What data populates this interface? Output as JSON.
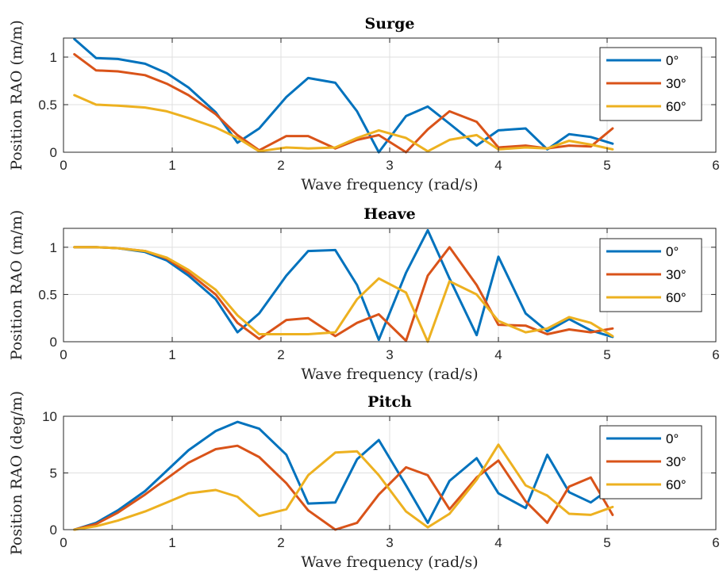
{
  "chart_data": [
    {
      "type": "line",
      "title": "Surge",
      "xlabel": "Wave frequency (rad/s)",
      "ylabel": "Position RAO (m/m)",
      "xlim": [
        0,
        6
      ],
      "ylim": [
        0,
        1.2
      ],
      "xticks": [
        0,
        1,
        2,
        3,
        4,
        5,
        6
      ],
      "yticks": [
        0,
        0.5,
        1
      ],
      "ytick_labels": [
        "0",
        "0.5",
        "1"
      ],
      "grid": true,
      "legend_position": "top-right",
      "x": [
        0.1,
        0.3,
        0.5,
        0.75,
        0.95,
        1.15,
        1.4,
        1.6,
        1.8,
        2.05,
        2.25,
        2.5,
        2.7,
        2.9,
        3.15,
        3.35,
        3.55,
        3.8,
        4.0,
        4.25,
        4.45,
        4.65,
        4.85,
        5.05
      ],
      "series": [
        {
          "name": "0°",
          "color": "#0072BD",
          "values": [
            1.19,
            0.99,
            0.98,
            0.93,
            0.83,
            0.68,
            0.42,
            0.1,
            0.25,
            0.58,
            0.78,
            0.73,
            0.43,
            0.0,
            0.38,
            0.48,
            0.3,
            0.07,
            0.23,
            0.25,
            0.03,
            0.19,
            0.16,
            0.09
          ]
        },
        {
          "name": "30°",
          "color": "#D95319",
          "values": [
            1.03,
            0.86,
            0.85,
            0.81,
            0.72,
            0.6,
            0.4,
            0.18,
            0.02,
            0.17,
            0.17,
            0.04,
            0.13,
            0.18,
            0.0,
            0.24,
            0.43,
            0.32,
            0.05,
            0.07,
            0.04,
            0.07,
            0.06,
            0.25
          ]
        },
        {
          "name": "60°",
          "color": "#EDB120",
          "values": [
            0.6,
            0.5,
            0.49,
            0.47,
            0.43,
            0.36,
            0.26,
            0.15,
            0.01,
            0.05,
            0.04,
            0.05,
            0.15,
            0.23,
            0.15,
            0.01,
            0.13,
            0.18,
            0.03,
            0.05,
            0.04,
            0.12,
            0.08,
            0.03
          ]
        }
      ]
    },
    {
      "type": "line",
      "title": "Heave",
      "xlabel": "Wave frequency (rad/s)",
      "ylabel": "Position RAO (m/m)",
      "xlim": [
        0,
        6
      ],
      "ylim": [
        0,
        1.2
      ],
      "xticks": [
        0,
        1,
        2,
        3,
        4,
        5,
        6
      ],
      "yticks": [
        0,
        0.5,
        1
      ],
      "ytick_labels": [
        "0",
        "0.5",
        "1"
      ],
      "grid": true,
      "legend_position": "right",
      "x": [
        0.1,
        0.3,
        0.5,
        0.75,
        0.95,
        1.15,
        1.4,
        1.6,
        1.8,
        2.05,
        2.25,
        2.5,
        2.7,
        2.9,
        3.15,
        3.35,
        3.55,
        3.8,
        4.0,
        4.25,
        4.45,
        4.65,
        4.85,
        5.05
      ],
      "series": [
        {
          "name": "0°",
          "color": "#0072BD",
          "values": [
            1.0,
            1.0,
            0.99,
            0.95,
            0.86,
            0.7,
            0.45,
            0.1,
            0.3,
            0.7,
            0.96,
            0.97,
            0.6,
            0.02,
            0.73,
            1.18,
            0.67,
            0.07,
            0.9,
            0.3,
            0.11,
            0.24,
            0.12,
            0.05
          ]
        },
        {
          "name": "30°",
          "color": "#D95319",
          "values": [
            1.0,
            1.0,
            0.99,
            0.96,
            0.88,
            0.73,
            0.5,
            0.2,
            0.03,
            0.23,
            0.25,
            0.06,
            0.2,
            0.29,
            0.01,
            0.7,
            1.0,
            0.6,
            0.18,
            0.17,
            0.08,
            0.13,
            0.1,
            0.14
          ]
        },
        {
          "name": "60°",
          "color": "#EDB120",
          "values": [
            1.0,
            1.0,
            0.99,
            0.96,
            0.89,
            0.76,
            0.55,
            0.28,
            0.08,
            0.08,
            0.08,
            0.1,
            0.45,
            0.67,
            0.52,
            0.0,
            0.64,
            0.5,
            0.22,
            0.1,
            0.14,
            0.26,
            0.2,
            0.06
          ]
        }
      ]
    },
    {
      "type": "line",
      "title": "Pitch",
      "xlabel": "Wave frequency (rad/s)",
      "ylabel": "Position RAO (deg/m)",
      "xlim": [
        0,
        6
      ],
      "ylim": [
        0,
        10
      ],
      "xticks": [
        0,
        1,
        2,
        3,
        4,
        5,
        6
      ],
      "yticks": [
        0,
        5,
        10
      ],
      "ytick_labels": [
        "0",
        "5",
        "10"
      ],
      "grid": true,
      "legend_position": "top-right",
      "x": [
        0.1,
        0.3,
        0.5,
        0.75,
        0.95,
        1.15,
        1.4,
        1.6,
        1.8,
        2.05,
        2.25,
        2.5,
        2.7,
        2.9,
        3.15,
        3.35,
        3.55,
        3.8,
        4.0,
        4.25,
        4.45,
        4.65,
        4.85,
        5.05
      ],
      "series": [
        {
          "name": "0°",
          "color": "#0072BD",
          "values": [
            0.0,
            0.6,
            1.7,
            3.4,
            5.2,
            7.0,
            8.7,
            9.5,
            8.9,
            6.6,
            2.3,
            2.4,
            6.2,
            7.9,
            3.9,
            0.6,
            4.3,
            6.3,
            3.2,
            1.9,
            6.6,
            3.3,
            2.4,
            3.8
          ]
        },
        {
          "name": "30°",
          "color": "#D95319",
          "values": [
            0.0,
            0.5,
            1.5,
            3.1,
            4.5,
            5.9,
            7.1,
            7.4,
            6.4,
            4.1,
            1.7,
            0.0,
            0.6,
            3.1,
            5.5,
            4.8,
            1.8,
            4.6,
            6.1,
            2.5,
            0.6,
            3.8,
            4.6,
            1.3
          ]
        },
        {
          "name": "60°",
          "color": "#EDB120",
          "values": [
            0.0,
            0.3,
            0.8,
            1.6,
            2.4,
            3.2,
            3.5,
            2.9,
            1.2,
            1.8,
            4.8,
            6.8,
            6.9,
            4.8,
            1.6,
            0.2,
            1.4,
            4.4,
            7.5,
            3.9,
            3.0,
            1.4,
            1.3,
            2.0
          ]
        }
      ]
    }
  ]
}
